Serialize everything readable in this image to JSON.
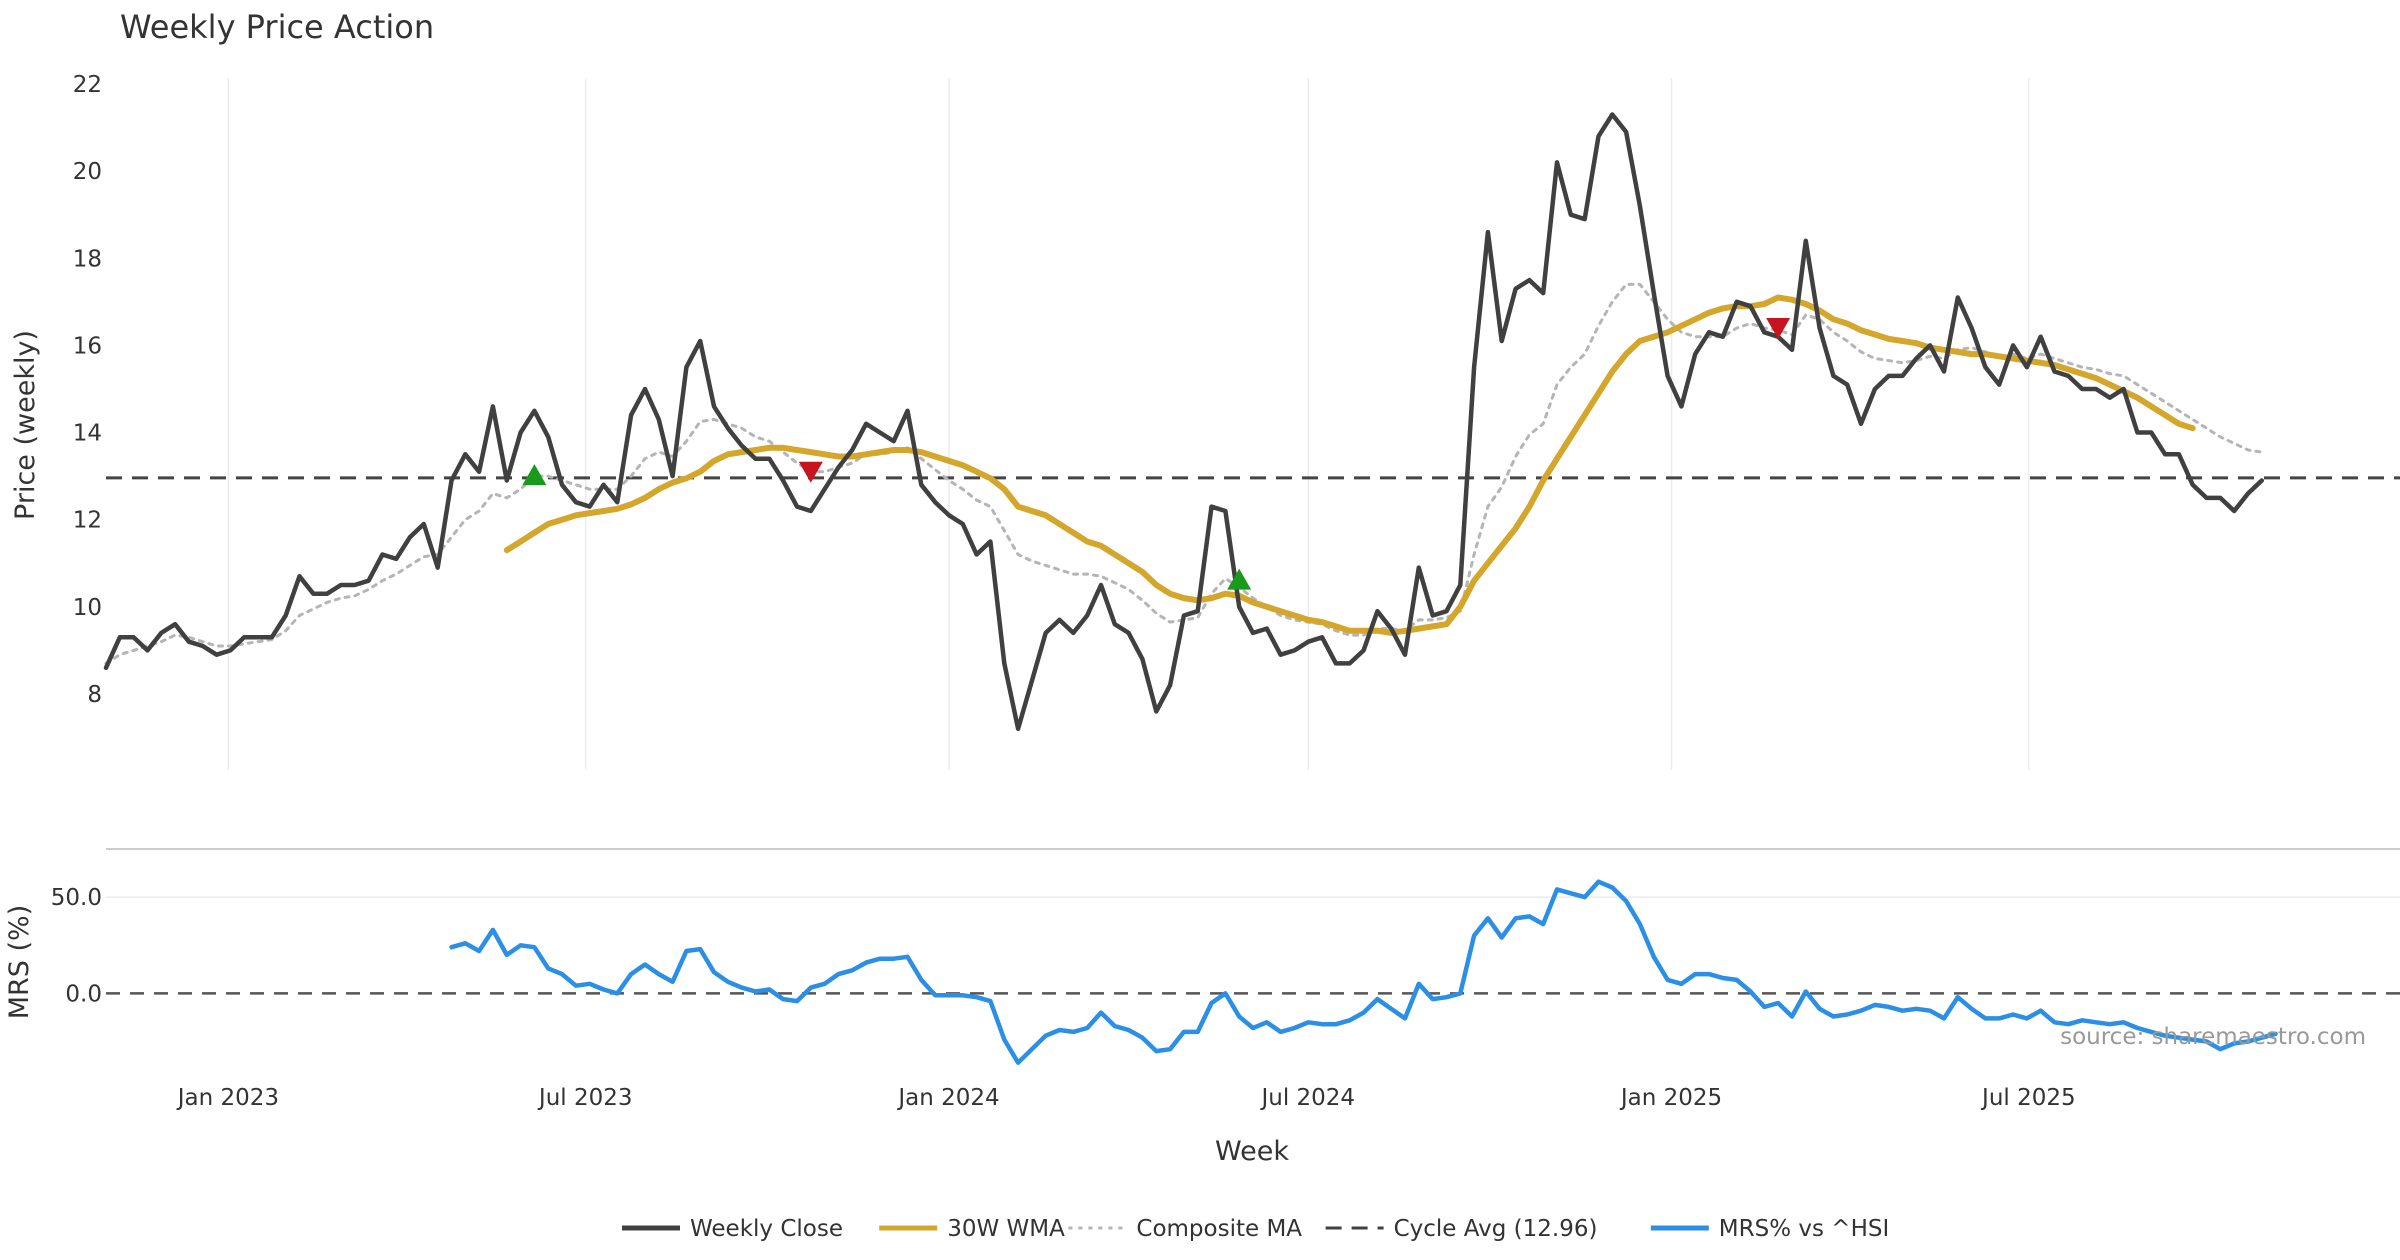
{
  "chart_data": {
    "type": "line",
    "title": "Weekly Price Action",
    "xlabel": "Week",
    "source_note": "source: sharemaestro.com",
    "x_start": "2022-10-31",
    "x_step_days": 7,
    "x_range": [
      "2022-10-31",
      "2026-01-05"
    ],
    "x_ticks": [
      {
        "label": "Jan 2023",
        "date": "2023-01-01"
      },
      {
        "label": "Jul 2023",
        "date": "2023-07-01"
      },
      {
        "label": "Jan 2024",
        "date": "2024-01-01"
      },
      {
        "label": "Jul 2024",
        "date": "2024-07-01"
      },
      {
        "label": "Jan 2025",
        "date": "2025-01-01"
      },
      {
        "label": "Jul 2025",
        "date": "2025-07-01"
      }
    ],
    "price_panel": {
      "ylabel": "Price (weekly)",
      "ylim": [
        6.3,
        22.0
      ],
      "y_ticks": [
        8,
        10,
        12,
        14,
        16,
        18,
        20,
        22
      ],
      "cycle_avg": 12.96,
      "series": [
        {
          "name": "Weekly Close",
          "color": "#404040",
          "style": "solid",
          "values": [
            8.6,
            9.3,
            9.3,
            9.0,
            9.4,
            9.6,
            9.2,
            9.1,
            8.9,
            9.0,
            9.3,
            9.3,
            9.3,
            9.8,
            10.7,
            10.3,
            10.3,
            10.5,
            10.5,
            10.6,
            11.2,
            11.1,
            11.6,
            11.9,
            10.9,
            12.9,
            13.5,
            13.1,
            14.6,
            12.9,
            14.0,
            14.5,
            13.9,
            12.8,
            12.4,
            12.3,
            12.8,
            12.4,
            14.4,
            15.0,
            14.3,
            13.0,
            15.5,
            16.1,
            14.6,
            14.1,
            13.7,
            13.4,
            13.4,
            12.9,
            12.3,
            12.2,
            12.7,
            13.2,
            13.6,
            14.2,
            14.0,
            13.8,
            14.5,
            12.8,
            12.4,
            12.1,
            11.9,
            11.2,
            11.5,
            8.7,
            7.2,
            8.3,
            9.4,
            9.7,
            9.4,
            9.8,
            10.5,
            9.6,
            9.4,
            8.8,
            7.6,
            8.2,
            9.8,
            9.9,
            12.3,
            12.2,
            10.0,
            9.4,
            9.5,
            8.9,
            9.0,
            9.2,
            9.3,
            8.7,
            8.7,
            9.0,
            9.9,
            9.5,
            8.9,
            10.9,
            9.8,
            9.9,
            10.5,
            15.5,
            18.6,
            16.1,
            17.3,
            17.5,
            17.2,
            20.2,
            19.0,
            18.9,
            20.8,
            21.3,
            20.9,
            19.2,
            17.2,
            15.3,
            14.6,
            15.8,
            16.3,
            16.2,
            17.0,
            16.9,
            16.3,
            16.2,
            15.9,
            18.4,
            16.4,
            15.3,
            15.1,
            14.2,
            15.0,
            15.3,
            15.3,
            15.7,
            16.0,
            15.4,
            17.1,
            16.4,
            15.5,
            15.1,
            16.0,
            15.5,
            16.2,
            15.4,
            15.3,
            15.0,
            15.0,
            14.8,
            15.0,
            14.0,
            14.0,
            13.5,
            13.5,
            12.8,
            12.5,
            12.5,
            12.2,
            12.6,
            12.9
          ]
        },
        {
          "name": "30W WMA",
          "color": "#d4a72c",
          "style": "solid",
          "start_index": 29,
          "values": [
            11.3,
            11.5,
            11.7,
            11.9,
            12.0,
            12.1,
            12.15,
            12.2,
            12.25,
            12.35,
            12.5,
            12.7,
            12.85,
            12.95,
            13.1,
            13.35,
            13.5,
            13.55,
            13.6,
            13.65,
            13.65,
            13.6,
            13.55,
            13.5,
            13.45,
            13.45,
            13.5,
            13.55,
            13.6,
            13.6,
            13.55,
            13.45,
            13.35,
            13.25,
            13.1,
            12.95,
            12.7,
            12.3,
            12.2,
            12.1,
            11.9,
            11.7,
            11.5,
            11.4,
            11.2,
            11.0,
            10.8,
            10.5,
            10.3,
            10.2,
            10.15,
            10.2,
            10.3,
            10.25,
            10.1,
            10.0,
            9.9,
            9.8,
            9.7,
            9.65,
            9.55,
            9.45,
            9.45,
            9.45,
            9.4,
            9.45,
            9.5,
            9.55,
            9.6,
            10.0,
            10.6,
            11.0,
            11.4,
            11.8,
            12.3,
            12.9,
            13.4,
            13.9,
            14.4,
            14.9,
            15.4,
            15.8,
            16.1,
            16.2,
            16.3,
            16.45,
            16.6,
            16.75,
            16.85,
            16.9,
            16.9,
            16.95,
            17.1,
            17.05,
            16.95,
            16.8,
            16.6,
            16.5,
            16.35,
            16.25,
            16.15,
            16.1,
            16.05,
            15.95,
            15.9,
            15.85,
            15.8,
            15.8,
            15.75,
            15.7,
            15.65,
            15.6,
            15.55,
            15.45,
            15.35,
            15.25,
            15.1,
            14.95,
            14.8,
            14.6,
            14.4,
            14.2,
            14.1
          ]
        },
        {
          "name": "Composite MA",
          "color": "#b5b5b5",
          "style": "dotted",
          "values": [
            8.7,
            8.9,
            9.0,
            9.1,
            9.2,
            9.35,
            9.3,
            9.2,
            9.1,
            9.1,
            9.15,
            9.2,
            9.25,
            9.45,
            9.8,
            9.95,
            10.1,
            10.2,
            10.25,
            10.4,
            10.6,
            10.75,
            10.95,
            11.15,
            11.2,
            11.6,
            12.0,
            12.2,
            12.6,
            12.5,
            12.7,
            13.0,
            13.0,
            12.9,
            12.8,
            12.7,
            12.7,
            12.7,
            13.0,
            13.4,
            13.55,
            13.45,
            13.8,
            14.25,
            14.3,
            14.2,
            14.1,
            13.9,
            13.8,
            13.55,
            13.3,
            13.1,
            13.1,
            13.2,
            13.3,
            13.5,
            13.5,
            13.55,
            13.65,
            13.4,
            13.15,
            12.9,
            12.7,
            12.45,
            12.3,
            11.75,
            11.2,
            11.05,
            10.95,
            10.85,
            10.75,
            10.75,
            10.7,
            10.55,
            10.4,
            10.15,
            9.85,
            9.65,
            9.7,
            9.75,
            10.3,
            10.65,
            10.45,
            10.2,
            10.0,
            9.8,
            9.7,
            9.65,
            9.6,
            9.45,
            9.35,
            9.35,
            9.5,
            9.5,
            9.45,
            9.7,
            9.7,
            9.75,
            9.9,
            11.2,
            12.3,
            12.75,
            13.45,
            13.95,
            14.2,
            15.1,
            15.5,
            15.8,
            16.45,
            17.0,
            17.4,
            17.4,
            17.0,
            16.6,
            16.3,
            16.2,
            16.2,
            16.2,
            16.4,
            16.5,
            16.4,
            16.35,
            16.25,
            16.7,
            16.6,
            16.3,
            16.1,
            15.85,
            15.7,
            15.65,
            15.6,
            15.65,
            15.75,
            15.7,
            15.9,
            15.95,
            15.85,
            15.7,
            15.8,
            15.7,
            15.8,
            15.7,
            15.6,
            15.5,
            15.45,
            15.35,
            15.3,
            15.1,
            14.9,
            14.7,
            14.5,
            14.3,
            14.1,
            13.9,
            13.75,
            13.6,
            13.55
          ]
        }
      ],
      "signals": [
        {
          "type": "buy",
          "index": 31,
          "value": 13.0,
          "color": "#1a9a1a"
        },
        {
          "type": "sell",
          "index": 51,
          "value": 13.1,
          "color": "#c8141e"
        },
        {
          "type": "buy",
          "index": 82,
          "value": 10.6,
          "color": "#1a9a1a"
        },
        {
          "type": "sell",
          "index": 121,
          "value": 16.4,
          "color": "#c8141e"
        }
      ]
    },
    "mrs_panel": {
      "ylabel": "MRS (%)",
      "ylim": [
        -45,
        75
      ],
      "y_ticks": [
        {
          "label": "50.0",
          "value": 50
        },
        {
          "label": "0.0",
          "value": 0
        }
      ],
      "zero_line": 0,
      "series": [
        {
          "name": "MRS% vs ^HSI",
          "color": "#2b8fe6",
          "style": "solid",
          "start_index": 25,
          "values": [
            24,
            26,
            22,
            33,
            20,
            25,
            24,
            13,
            10,
            4,
            5,
            2,
            0,
            10,
            15,
            10,
            6,
            22,
            23,
            11,
            6,
            3,
            1,
            2,
            -3,
            -4,
            3,
            5,
            10,
            12,
            16,
            18,
            18,
            19,
            7,
            -1,
            -1,
            -1,
            -2,
            -4,
            -24,
            -36,
            -29,
            -22,
            -19,
            -20,
            -18,
            -10,
            -17,
            -19,
            -23,
            -30,
            -29,
            -20,
            -20,
            -5,
            0,
            -12,
            -18,
            -15,
            -20,
            -18,
            -15,
            -16,
            -16,
            -14,
            -10,
            -3,
            -8,
            -13,
            5,
            -3,
            -2,
            0,
            30,
            39,
            29,
            39,
            40,
            36,
            54,
            52,
            50,
            58,
            55,
            48,
            36,
            19,
            7,
            5,
            10,
            10,
            8,
            7,
            1,
            -7,
            -5,
            -12,
            1,
            -8,
            -12,
            -11,
            -9,
            -6,
            -7,
            -9,
            -8,
            -9,
            -13,
            -2,
            -8,
            -13,
            -13,
            -11,
            -13,
            -9,
            -15,
            -16,
            -14,
            -15,
            -16,
            -15,
            -18,
            -20,
            -22,
            -23,
            -24,
            -25,
            -29,
            -26,
            -25,
            -23,
            -21
          ]
        }
      ]
    },
    "legend": [
      {
        "label": "Weekly Close",
        "color": "#404040",
        "style": "solid"
      },
      {
        "label": "30W WMA",
        "color": "#d4a72c",
        "style": "solid"
      },
      {
        "label": "Composite MA",
        "color": "#b5b5b5",
        "style": "dotted"
      },
      {
        "label": "Cycle Avg (12.96)",
        "color": "#404040",
        "style": "dashed"
      },
      {
        "label": "MRS% vs ^HSI",
        "color": "#2b8fe6",
        "style": "solid"
      }
    ]
  }
}
